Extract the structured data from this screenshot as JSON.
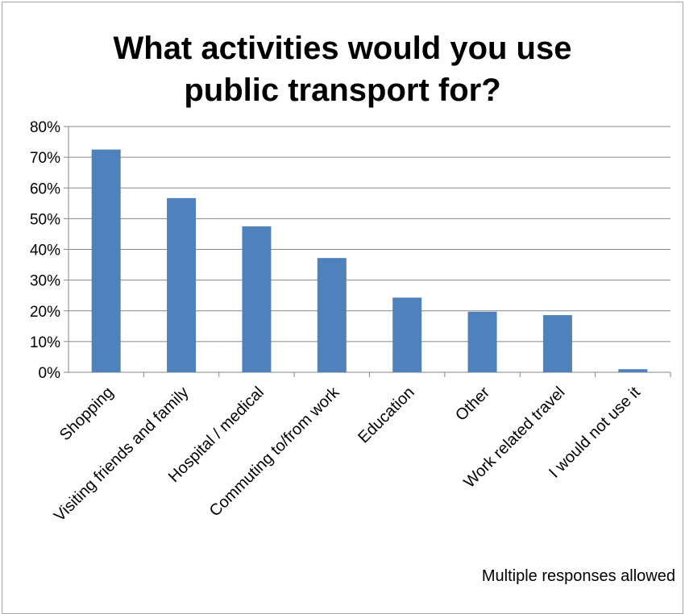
{
  "chart_data": {
    "type": "bar",
    "title_lines": [
      "What activities would you use",
      "public transport for?"
    ],
    "categories": [
      "Shopping",
      "Visiting friends and family",
      "Hospital / medical",
      "Commuting to/from work",
      "Education",
      "Other",
      "Work related travel",
      "I would not use it"
    ],
    "values": [
      72.5,
      56.7,
      47.5,
      37.2,
      24.3,
      19.7,
      18.6,
      1.0
    ],
    "ylim": [
      0,
      80
    ],
    "yticks": [
      "0%",
      "10%",
      "20%",
      "30%",
      "40%",
      "50%",
      "60%",
      "70%",
      "80%"
    ],
    "grid": true,
    "legend": "none",
    "bar_color": "#4f81bd",
    "note": "Multiple responses allowed"
  }
}
